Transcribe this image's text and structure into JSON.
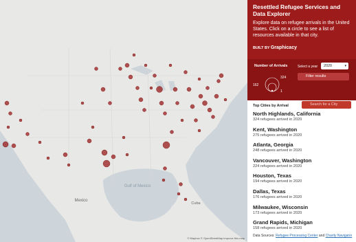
{
  "header": {
    "title": "Resettled Refugee Services and Data Explorer",
    "description": "Explore data on refugee arrivals in the United States. Click on a circle to see a list of resources available in that city.",
    "built_by": "BUILT BY",
    "brand": "Graphicacy"
  },
  "legend": {
    "title": "Number of Arrivals",
    "labels": [
      324,
      162,
      1
    ]
  },
  "controls": {
    "year_label": "Select a year",
    "year": "2020",
    "filter": "Filter results"
  },
  "list": {
    "title": "Top Cities by Arrival",
    "search_placeholder": "Search for a City",
    "items": [
      {
        "name": "North Highlands, California",
        "detail": "324 refugees arrived in 2020"
      },
      {
        "name": "Kent, Washington",
        "detail": "275 refugees arrived in 2020"
      },
      {
        "name": "Atlanta, Georgia",
        "detail": "248 refugees arrived in 2020"
      },
      {
        "name": "Vancouver, Washington",
        "detail": "224 refugees arrived in 2020"
      },
      {
        "name": "Houston, Texas",
        "detail": "194 refugees arrived in 2020"
      },
      {
        "name": "Dallas, Texas",
        "detail": "176 refugees arrived in 2020"
      },
      {
        "name": "Milwaukee, Wisconsin",
        "detail": "173 refugees arrived in 2020"
      },
      {
        "name": "Grand Rapids, Michigan",
        "detail": "158 refugees arrived in 2020"
      }
    ]
  },
  "footer": {
    "prefix": "Data Sources:",
    "source1": "Refugee Processing Center",
    "joiner": "and",
    "source2": "Charity Navigator"
  },
  "map": {
    "labels": {
      "gulf": "Gulf of Mexico",
      "mexico": "Mexico",
      "cuba": "Cuba"
    },
    "attribution": "© Mapbox © OpenStreetMap Improve this map"
  }
}
